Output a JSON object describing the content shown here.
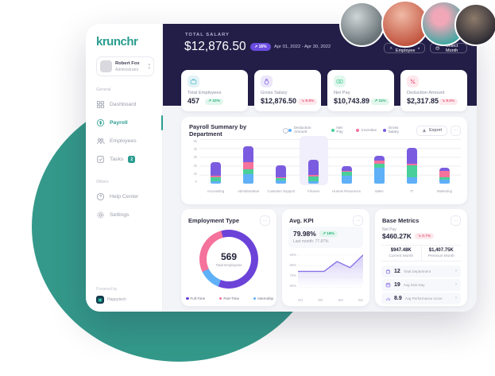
{
  "brand": {
    "logo": "krunchr",
    "powered_by": "Powered by",
    "powered_by_name": "Happytech"
  },
  "sidebar": {
    "profile": {
      "name": "Robert Fox",
      "role": "Administrator"
    },
    "section_general": "General",
    "section_others": "Others",
    "items": [
      {
        "label": "Dashboard"
      },
      {
        "label": "Payroll"
      },
      {
        "label": "Employees"
      },
      {
        "label": "Tasks",
        "badge": "2"
      },
      {
        "label": "Help Center"
      },
      {
        "label": "Settings"
      }
    ]
  },
  "header": {
    "label": "TOTAL SALARY",
    "value": "$12,876.50",
    "badge": "↗ 16%",
    "date_range": "Apr 01, 2022 - Apr 30, 2022",
    "select_employee": "Select Employee",
    "select_month": "Select Month"
  },
  "kpi": [
    {
      "label": "Total Employees",
      "value": "457",
      "badge": "↗ 10%",
      "trend": "up",
      "icon": "briefcase-icon",
      "accent": "#3fb3c6"
    },
    {
      "label": "Gross Salary",
      "value": "$12,876.50",
      "badge": "↘ 8.8%",
      "trend": "down",
      "icon": "money-bag-icon",
      "accent": "#7b5ce0"
    },
    {
      "label": "Net Pay",
      "value": "$10,743.89",
      "badge": "↗ 11%",
      "trend": "up",
      "icon": "banknote-icon",
      "accent": "#3ec98e"
    },
    {
      "label": "Deduction Amount",
      "value": "$2,317.85",
      "badge": "↘ 8.5%",
      "trend": "down",
      "icon": "percent-icon",
      "accent": "#ef5d7f"
    }
  ],
  "payroll_summary": {
    "title": "Payroll Summary by Department",
    "export_label": "Export",
    "more_label": "···"
  },
  "employment": {
    "title": "Employment Type",
    "more_label": "···"
  },
  "avg_kpi": {
    "title": "Avg. KPI",
    "value": "79.98%",
    "badge": "↗ 19%",
    "last_month": "Last month: 77.87%",
    "more_label": "···"
  },
  "base_metrics": {
    "title": "Base Metrics",
    "more_label": "···",
    "subtitle": "Net Pay",
    "value": "$460.27K",
    "badge": "↘ 0.7%",
    "current": {
      "value": "$947.48K",
      "label": "Current Month"
    },
    "previous": {
      "value": "$1,407.75K",
      "label": "Previous Month"
    },
    "rows": [
      {
        "value": "12",
        "label": "Total Department",
        "icon": "department-icon"
      },
      {
        "value": "19",
        "label": "Avg Sick Day",
        "icon": "calendar-icon"
      },
      {
        "value": "8.9",
        "label": "Avg Performance score",
        "icon": "chart-icon"
      }
    ]
  },
  "chart_data": [
    {
      "id": "payroll_by_department",
      "type": "bar",
      "stacked": true,
      "categories": [
        "Accounting",
        "Administration",
        "Customer Support",
        "Finance",
        "Human Resources",
        "Sales",
        "IT",
        "Marketing"
      ],
      "series": [
        {
          "name": "Deduction Amount",
          "color": "#5fb0f7",
          "values": [
            300,
            1100,
            350,
            250,
            850,
            1800,
            700,
            450
          ]
        },
        {
          "name": "Net Pay",
          "color": "#49cf99",
          "values": [
            450,
            500,
            300,
            550,
            450,
            400,
            1400,
            250
          ]
        },
        {
          "name": "Incentive",
          "color": "#f4729b",
          "values": [
            150,
            800,
            100,
            200,
            100,
            350,
            100,
            750
          ]
        },
        {
          "name": "Gross Salary",
          "color": "#7b5ce0",
          "values": [
            1500,
            1800,
            1300,
            1650,
            550,
            600,
            1850,
            300
          ]
        }
      ],
      "ylim": [
        0,
        5000
      ],
      "yticks": [
        "5k",
        "4k",
        "3k",
        "2k",
        "1k",
        "0"
      ],
      "highlight_category": "Finance",
      "legend_position": "top",
      "grid": true
    },
    {
      "id": "employment_type",
      "type": "pie",
      "donut": true,
      "labels": [
        "Full-Time",
        "Part-Time",
        "Internship"
      ],
      "values": [
        60,
        28,
        12
      ],
      "colors": [
        "#6c43d8",
        "#f4729b",
        "#5fb0f7"
      ],
      "draw_order": [
        0,
        2,
        1
      ],
      "start_angle_deg": 345,
      "center_value": "569",
      "center_label": "Total Employees",
      "legend_position": "bottom"
    },
    {
      "id": "avg_kpi_trend",
      "type": "area",
      "x": [
        "W1",
        "W2",
        "W3",
        "W4"
      ],
      "y": [
        75,
        75,
        75,
        84,
        78.5,
        90
      ],
      "ylim": [
        60,
        92
      ],
      "yticks": [
        "90%",
        "80%",
        "70%",
        "60%"
      ],
      "ytick_values": [
        90,
        80,
        70,
        60
      ],
      "color": "#8b74e8",
      "grid": true
    }
  ]
}
